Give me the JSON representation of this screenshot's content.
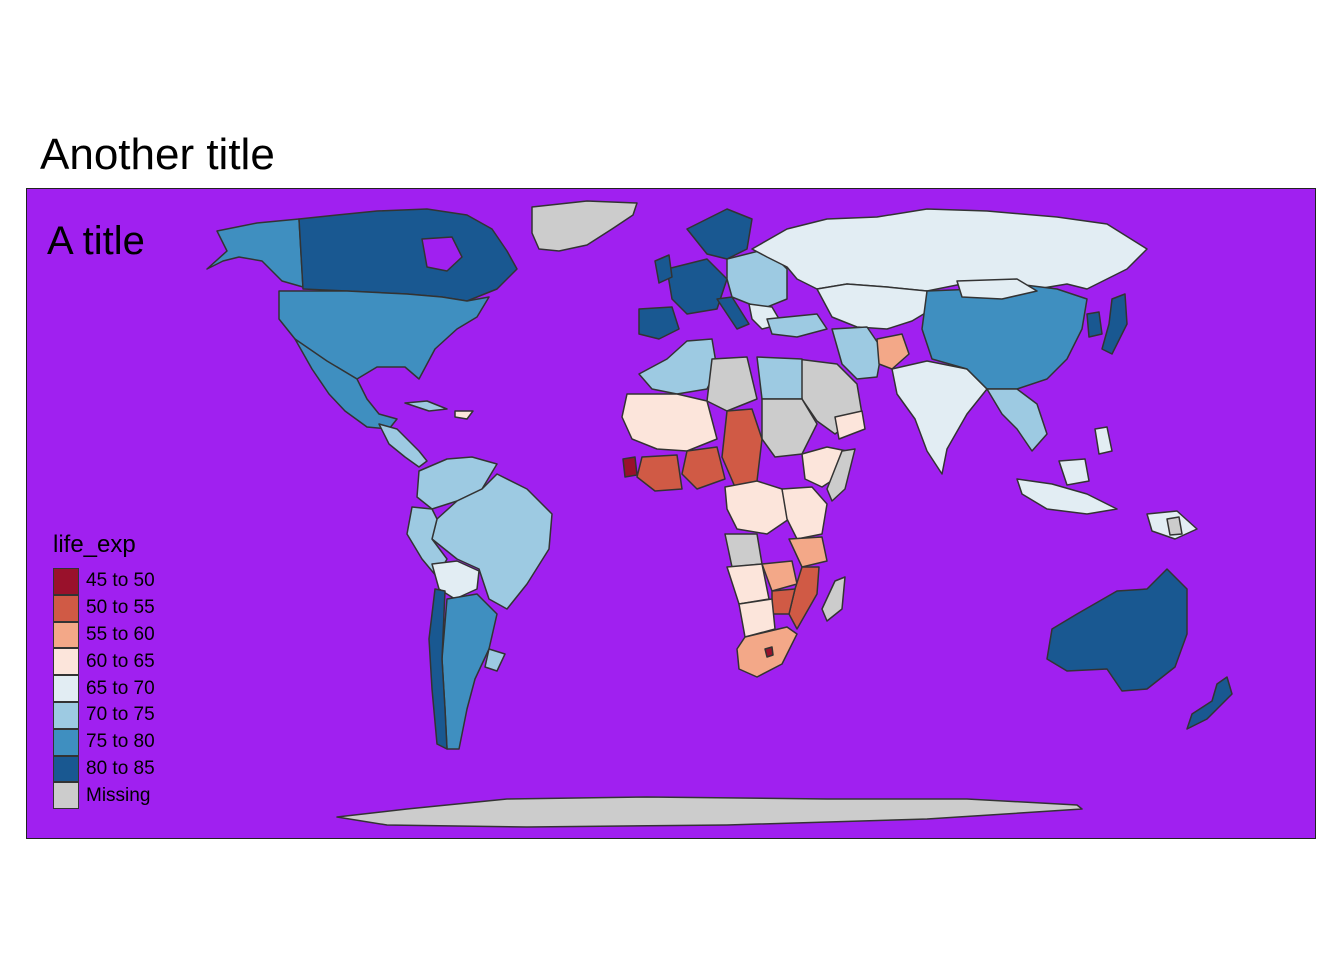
{
  "title": "Another title",
  "map": {
    "inner_title": "A title",
    "background_color": "#A020F0",
    "border_color": "#333333",
    "missing_color": "#CCCCCC"
  },
  "legend": {
    "title": "life_exp",
    "items": [
      {
        "label": "45 to 50",
        "color": "#99112B"
      },
      {
        "label": "50 to 55",
        "color": "#D05A45"
      },
      {
        "label": "55 to 60",
        "color": "#F3A888"
      },
      {
        "label": "60 to 65",
        "color": "#FCE5DB"
      },
      {
        "label": "65 to 70",
        "color": "#E2EDF3"
      },
      {
        "label": "70 to 75",
        "color": "#9DCAE2"
      },
      {
        "label": "75 to 80",
        "color": "#3F8FC0"
      },
      {
        "label": "80 to 85",
        "color": "#195891"
      },
      {
        "label": "Missing",
        "color": "#CCCCCC"
      }
    ]
  }
}
